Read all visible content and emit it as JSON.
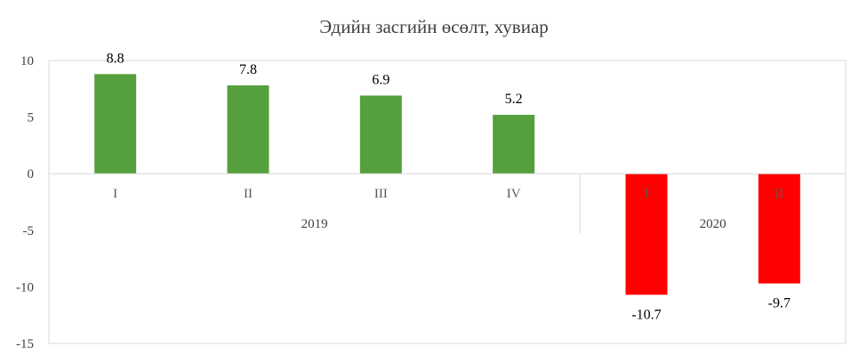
{
  "chart_data": {
    "type": "bar",
    "title": "Эдийн засгийн өсөлт, хувиар",
    "xlabel": "",
    "ylabel": "",
    "ylim": [
      -15,
      10
    ],
    "y_ticks": [
      10,
      5,
      0,
      -5,
      -10,
      -15
    ],
    "grid": false,
    "legend": "none",
    "groups": [
      {
        "label": "2019",
        "categories": [
          "I",
          "II",
          "III",
          "IV"
        ]
      },
      {
        "label": "2020",
        "categories": [
          "I",
          "II"
        ]
      }
    ],
    "categories": [
      "I",
      "II",
      "III",
      "IV",
      "I",
      "II"
    ],
    "values": [
      8.8,
      7.8,
      6.9,
      5.2,
      -10.7,
      -9.7
    ],
    "data_labels": [
      "8.8",
      "7.8",
      "6.9",
      "5.2",
      "-10.7",
      "-9.7"
    ],
    "colors": {
      "positive": "#55A03C",
      "negative": "#FF0000",
      "axis": "#D9D9D9",
      "text": "#404040"
    }
  }
}
